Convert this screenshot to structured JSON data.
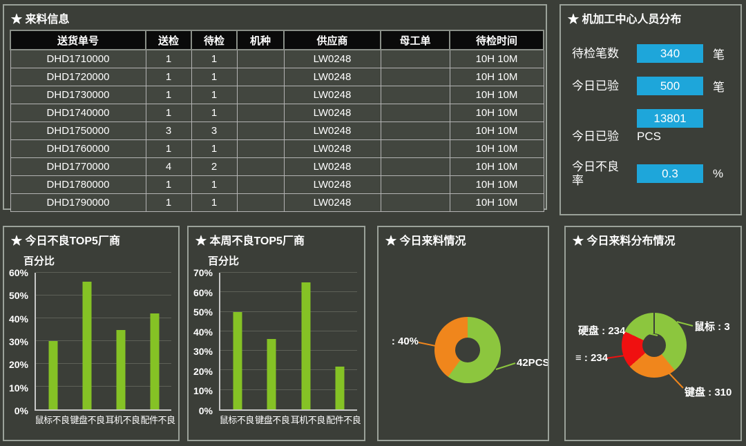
{
  "colors": {
    "background": "#3B3E38",
    "panel_border": "#9BA29A",
    "table_header_bg": "#0A0A0A",
    "stat_box": "#1EA6DA",
    "bar_green": "#85C225",
    "pie_green": "#8CC63E",
    "pie_orange": "#F0861C",
    "pie_red": "#F01010",
    "text": "#FFFFFF"
  },
  "incoming_panel": {
    "title": "★ 来料信息",
    "table": {
      "columns": [
        "送货单号",
        "送检",
        "待检",
        "机种",
        "供应商",
        "母工单",
        "待检时间"
      ],
      "rows": [
        [
          "DHD1710000",
          "1",
          "1",
          "",
          "LW0248",
          "",
          "10H 10M"
        ],
        [
          "DHD1720000",
          "1",
          "1",
          "",
          "LW0248",
          "",
          "10H 10M"
        ],
        [
          "DHD1730000",
          "1",
          "1",
          "",
          "LW0248",
          "",
          "10H 10M"
        ],
        [
          "DHD1740000",
          "1",
          "1",
          "",
          "LW0248",
          "",
          "10H 10M"
        ],
        [
          "DHD1750000",
          "3",
          "3",
          "",
          "LW0248",
          "",
          "10H 10M"
        ],
        [
          "DHD1760000",
          "1",
          "1",
          "",
          "LW0248",
          "",
          "10H 10M"
        ],
        [
          "DHD1770000",
          "4",
          "2",
          "",
          "LW0248",
          "",
          "10H 10M"
        ],
        [
          "DHD1780000",
          "1",
          "1",
          "",
          "LW0248",
          "",
          "10H 10M"
        ],
        [
          "DHD1790000",
          "1",
          "1",
          "",
          "LW0248",
          "",
          "10H 10M"
        ]
      ]
    }
  },
  "staff_panel": {
    "title": "★ 机加工中心人员分布",
    "stats": [
      {
        "label": "待检笔数",
        "value": "340",
        "unit": "笔"
      },
      {
        "label": "今日已验",
        "value": "500",
        "unit": "笔"
      },
      {
        "label": "今日已验",
        "value": "13801",
        "unit": "PCS",
        "unit_below": true
      },
      {
        "label": "今日不良率",
        "value": "0.3",
        "unit": "%"
      }
    ]
  },
  "chart_data": [
    {
      "type": "bar",
      "title": "★ 今日不良TOP5厂商",
      "ylabel": "百分比",
      "categories": [
        "鼠标不良",
        "键盘不良",
        "耳机不良",
        "配件不良"
      ],
      "values": [
        30,
        56,
        35,
        42
      ],
      "ylim": [
        0,
        60
      ],
      "ytick_step": 10,
      "grid": true,
      "bar_color": "#85C225"
    },
    {
      "type": "bar",
      "title": "★ 本周不良TOP5厂商",
      "ylabel": "百分比",
      "categories": [
        "鼠标不良",
        "键盘不良",
        "耳机不良",
        "配件不良"
      ],
      "values": [
        50,
        36,
        65,
        22
      ],
      "ylim": [
        0,
        70
      ],
      "ytick_step": 10,
      "grid": true,
      "bar_color": "#85C225"
    },
    {
      "type": "pie",
      "title": "★ 今日来料情况",
      "donut": true,
      "slices": [
        {
          "label": "42PCS",
          "percent": 60,
          "color": "#8CC63E"
        },
        {
          "label": ": 40%",
          "percent": 40,
          "color": "#F0861C"
        }
      ]
    },
    {
      "type": "pie",
      "title": "★ 今日来料分布情况",
      "donut": true,
      "slices": [
        {
          "label": "鼠标 : 3",
          "percent": 39,
          "color": "#8CC63E"
        },
        {
          "label": "键盘 : 310",
          "percent": 24.5,
          "color": "#F0861C"
        },
        {
          "label": "≡ : 234",
          "percent": 18.5,
          "color": "#F01010"
        },
        {
          "label": "硬盘 : 234",
          "percent": 18,
          "color": "#8CC63E"
        }
      ]
    }
  ]
}
